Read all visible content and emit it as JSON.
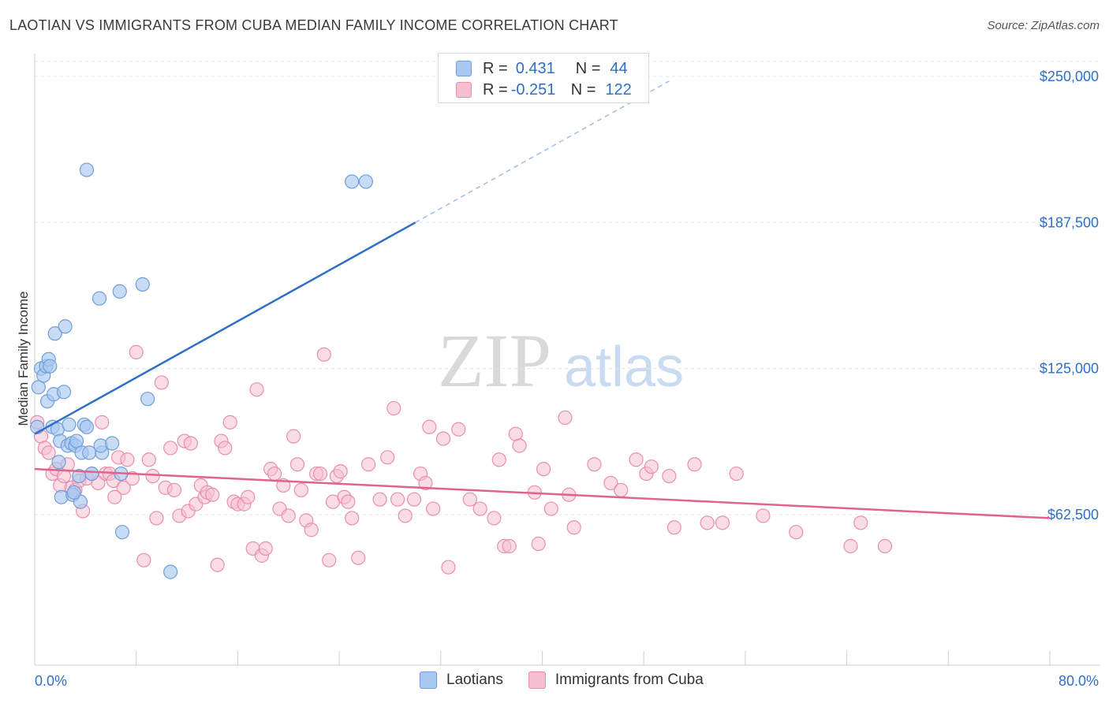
{
  "header": {
    "title": "LAOTIAN VS IMMIGRANTS FROM CUBA MEDIAN FAMILY INCOME CORRELATION CHART",
    "source": "Source: ZipAtlas.com"
  },
  "legend_top": {
    "series1": {
      "r_label": "R =",
      "r_value": "0.431",
      "n_label": "N =",
      "n_value": "44"
    },
    "series2": {
      "r_label": "R =",
      "r_value": "-0.251",
      "n_label": "N =",
      "n_value": "122"
    }
  },
  "legend_bottom": {
    "series1": "Laotians",
    "series2": "Immigrants from Cuba"
  },
  "colors": {
    "laotian_fill": "#a9c8ef",
    "laotian_stroke": "#6f9fd8",
    "laotian_line": "#2f6fc6",
    "cuba_fill": "#f6bfd0",
    "cuba_stroke": "#e88fac",
    "cuba_line": "#e0628f",
    "axis_text": "#2f6fc6"
  },
  "watermark": {
    "part1": "ZIP",
    "part2": "atlas"
  },
  "chart_data": {
    "type": "scatter",
    "title": "LAOTIAN VS IMMIGRANTS FROM CUBA MEDIAN FAMILY INCOME CORRELATION CHART",
    "xlabel": "",
    "ylabel": "Median Family Income",
    "xlim": [
      0,
      80
    ],
    "ylim": [
      0,
      265000
    ],
    "x_tick_labels": [
      "0.0%",
      "80.0%"
    ],
    "y_ticks": [
      62500,
      125000,
      187500,
      250000
    ],
    "y_tick_labels": [
      "$62,500",
      "$125,000",
      "$187,500",
      "$250,000"
    ],
    "series": [
      {
        "name": "Laotians",
        "r": 0.431,
        "n": 44,
        "trend": {
          "x0": 0,
          "y0": 97000,
          "x1": 30,
          "y1": 187500,
          "dashed_to_x": 50,
          "dashed_to_y": 248000
        },
        "points": [
          [
            0.2,
            100000
          ],
          [
            0.3,
            117000
          ],
          [
            0.5,
            125000
          ],
          [
            0.7,
            122000
          ],
          [
            0.9,
            126000
          ],
          [
            1.0,
            111000
          ],
          [
            1.1,
            129000
          ],
          [
            1.2,
            126000
          ],
          [
            1.4,
            100000
          ],
          [
            1.5,
            114000
          ],
          [
            1.6,
            140000
          ],
          [
            1.8,
            99000
          ],
          [
            1.9,
            85000
          ],
          [
            2.0,
            94000
          ],
          [
            2.1,
            70000
          ],
          [
            2.4,
            143000
          ],
          [
            2.3,
            115000
          ],
          [
            2.6,
            92000
          ],
          [
            2.7,
            101000
          ],
          [
            2.9,
            93000
          ],
          [
            3.0,
            71000
          ],
          [
            3.2,
            92000
          ],
          [
            3.3,
            94000
          ],
          [
            3.5,
            79000
          ],
          [
            3.6,
            68000
          ],
          [
            3.7,
            89000
          ],
          [
            3.9,
            101000
          ],
          [
            4.1,
            100000
          ],
          [
            4.3,
            89000
          ],
          [
            4.5,
            80000
          ],
          [
            4.1,
            210000
          ],
          [
            5.1,
            155000
          ],
          [
            5.3,
            89000
          ],
          [
            5.2,
            92000
          ],
          [
            6.1,
            93000
          ],
          [
            6.7,
            158000
          ],
          [
            6.8,
            80000
          ],
          [
            6.9,
            55000
          ],
          [
            8.5,
            161000
          ],
          [
            8.9,
            112000
          ],
          [
            10.7,
            38000
          ],
          [
            25.0,
            205000
          ],
          [
            26.1,
            205000
          ],
          [
            3.1,
            72000
          ]
        ]
      },
      {
        "name": "Immigrants from Cuba",
        "r": -0.251,
        "n": 122,
        "trend": {
          "x0": 0,
          "y0": 82000,
          "x1": 80,
          "y1": 61000
        },
        "points": [
          [
            0.2,
            102000
          ],
          [
            0.5,
            96000
          ],
          [
            0.8,
            91000
          ],
          [
            1.1,
            89000
          ],
          [
            1.4,
            80000
          ],
          [
            1.7,
            82000
          ],
          [
            2.0,
            75000
          ],
          [
            2.3,
            79000
          ],
          [
            2.6,
            84000
          ],
          [
            2.9,
            74000
          ],
          [
            3.2,
            73000
          ],
          [
            3.5,
            77000
          ],
          [
            3.8,
            64000
          ],
          [
            4.1,
            78000
          ],
          [
            4.5,
            80000
          ],
          [
            5.0,
            76000
          ],
          [
            5.3,
            102000
          ],
          [
            5.6,
            80000
          ],
          [
            5.9,
            80000
          ],
          [
            6.2,
            77000
          ],
          [
            6.6,
            87000
          ],
          [
            7.0,
            74000
          ],
          [
            7.3,
            86000
          ],
          [
            7.7,
            78000
          ],
          [
            8.0,
            132000
          ],
          [
            8.6,
            43000
          ],
          [
            9.3,
            79000
          ],
          [
            9.6,
            61000
          ],
          [
            10.0,
            119000
          ],
          [
            10.3,
            74000
          ],
          [
            10.7,
            91000
          ],
          [
            11.0,
            73000
          ],
          [
            11.4,
            62000
          ],
          [
            11.8,
            94000
          ],
          [
            12.1,
            64000
          ],
          [
            12.3,
            93000
          ],
          [
            12.7,
            67000
          ],
          [
            13.1,
            75000
          ],
          [
            13.4,
            70000
          ],
          [
            13.6,
            72000
          ],
          [
            14.0,
            71000
          ],
          [
            14.4,
            41000
          ],
          [
            14.7,
            94000
          ],
          [
            15.0,
            91000
          ],
          [
            15.4,
            102000
          ],
          [
            15.7,
            68000
          ],
          [
            16.0,
            67000
          ],
          [
            16.5,
            67000
          ],
          [
            16.8,
            70000
          ],
          [
            17.2,
            48000
          ],
          [
            17.5,
            116000
          ],
          [
            17.9,
            45000
          ],
          [
            18.2,
            48000
          ],
          [
            18.6,
            82000
          ],
          [
            18.9,
            80000
          ],
          [
            19.3,
            65000
          ],
          [
            19.6,
            75000
          ],
          [
            20.0,
            62000
          ],
          [
            20.4,
            96000
          ],
          [
            20.7,
            84000
          ],
          [
            21.0,
            73000
          ],
          [
            21.4,
            60000
          ],
          [
            21.8,
            56000
          ],
          [
            22.2,
            80000
          ],
          [
            22.5,
            80000
          ],
          [
            22.8,
            131000
          ],
          [
            23.2,
            43000
          ],
          [
            23.5,
            68000
          ],
          [
            23.8,
            79000
          ],
          [
            24.1,
            81000
          ],
          [
            24.4,
            70000
          ],
          [
            24.7,
            68000
          ],
          [
            25.0,
            61000
          ],
          [
            25.5,
            44000
          ],
          [
            26.3,
            84000
          ],
          [
            27.2,
            69000
          ],
          [
            27.8,
            87000
          ],
          [
            28.3,
            108000
          ],
          [
            28.6,
            69000
          ],
          [
            29.2,
            62000
          ],
          [
            29.9,
            69000
          ],
          [
            30.4,
            80000
          ],
          [
            30.8,
            76000
          ],
          [
            31.1,
            100000
          ],
          [
            31.4,
            65000
          ],
          [
            32.2,
            95000
          ],
          [
            32.6,
            40000
          ],
          [
            33.4,
            99000
          ],
          [
            34.3,
            69000
          ],
          [
            35.1,
            65000
          ],
          [
            36.2,
            61000
          ],
          [
            36.6,
            86000
          ],
          [
            37.0,
            49000
          ],
          [
            37.4,
            49000
          ],
          [
            37.9,
            97000
          ],
          [
            38.2,
            92000
          ],
          [
            39.4,
            72000
          ],
          [
            39.7,
            50000
          ],
          [
            40.1,
            82000
          ],
          [
            40.7,
            65000
          ],
          [
            41.8,
            104000
          ],
          [
            42.1,
            71000
          ],
          [
            42.5,
            57000
          ],
          [
            44.1,
            84000
          ],
          [
            45.4,
            76000
          ],
          [
            46.2,
            73000
          ],
          [
            47.4,
            86000
          ],
          [
            48.2,
            80000
          ],
          [
            48.6,
            83000
          ],
          [
            50.0,
            79000
          ],
          [
            50.4,
            57000
          ],
          [
            52.0,
            84000
          ],
          [
            53.0,
            59000
          ],
          [
            54.2,
            59000
          ],
          [
            55.3,
            80000
          ],
          [
            57.4,
            62000
          ],
          [
            60.0,
            55000
          ],
          [
            64.3,
            49000
          ],
          [
            65.1,
            59000
          ],
          [
            67.0,
            49000
          ],
          [
            9.0,
            86000
          ],
          [
            6.3,
            70000
          ]
        ]
      }
    ]
  }
}
